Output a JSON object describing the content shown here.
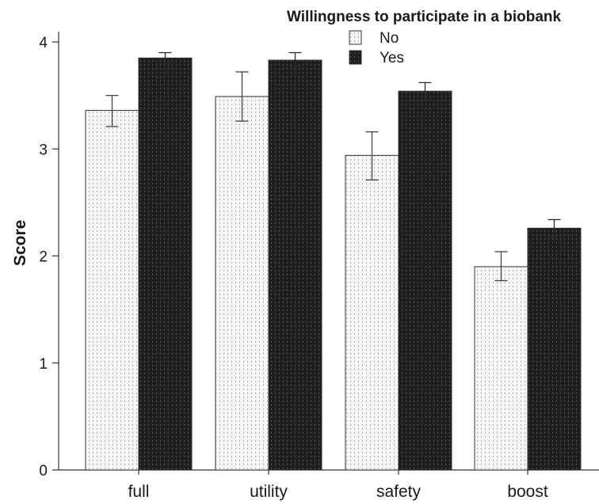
{
  "chart_data": {
    "type": "bar",
    "categories": [
      "full",
      "utility",
      "safety",
      "boost"
    ],
    "series": [
      {
        "name": "No",
        "values": [
          3.36,
          3.49,
          2.94,
          1.9
        ],
        "error_low": [
          3.21,
          3.26,
          2.71,
          1.77
        ],
        "error_high": [
          3.5,
          3.72,
          3.16,
          2.04
        ],
        "fill": "#f4f4f4",
        "pattern": "light-dotted"
      },
      {
        "name": "Yes",
        "values": [
          3.85,
          3.83,
          3.54,
          2.26
        ],
        "error_low": [
          3.8,
          3.77,
          3.46,
          2.18
        ],
        "error_high": [
          3.9,
          3.9,
          3.62,
          2.34
        ],
        "fill": "#222222",
        "pattern": "dark-dotted"
      }
    ],
    "xlabel": "",
    "ylabel": "Score",
    "ylim": [
      0,
      4.3
    ],
    "yticks": [
      0,
      1,
      2,
      3,
      4
    ],
    "legend": {
      "title": "Willingness to participate in a biobank",
      "placement": "top-right"
    },
    "grid": false
  }
}
